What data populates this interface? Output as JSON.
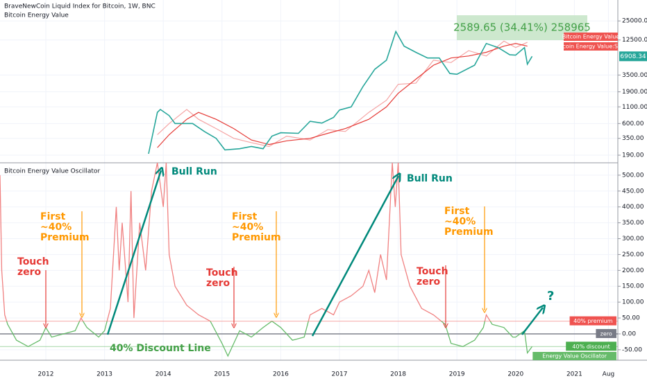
{
  "chart_data": [
    {
      "type": "line",
      "title": "BraveNewCoin Liquid Index for Bitcoin, 1W, BNC",
      "subtitle": "Bitcoin Energy Value",
      "log_scale": true,
      "ylim": [
        144,
        53500
      ],
      "yticks": [
        {
          "value": 190,
          "label": "190.00"
        },
        {
          "value": 350,
          "label": "350.00"
        },
        {
          "value": 600,
          "label": "600.00"
        },
        {
          "value": 1100,
          "label": "1100.00"
        },
        {
          "value": 1900,
          "label": "1900.00"
        },
        {
          "value": 3500,
          "label": "3500.00"
        },
        {
          "value": 12500,
          "label": "12500.00"
        },
        {
          "value": 25000,
          "label": "25000.00"
        }
      ],
      "grid": true,
      "series": [
        {
          "name": "Bitcoin Energy Value",
          "color": "#f5a3a3",
          "x": [
            2013.9,
            2014.1,
            2014.4,
            2014.6,
            2014.9,
            2015.2,
            2015.5,
            2015.8,
            2016.1,
            2016.5,
            2016.8,
            2017.1,
            2017.5,
            2017.8,
            2018.0,
            2018.3,
            2018.6,
            2018.9,
            2019.2,
            2019.5,
            2019.8,
            2020.0,
            2020.2
          ],
          "values": [
            400,
            600,
            1000,
            700,
            500,
            350,
            300,
            260,
            380,
            330,
            480,
            450,
            900,
            1400,
            2500,
            2600,
            6000,
            5500,
            8500,
            7000,
            12000,
            9500,
            11500
          ]
        },
        {
          "name": "Bitcoin Energy Value:SMA",
          "color": "#e53935",
          "x": [
            2013.9,
            2014.1,
            2014.4,
            2014.6,
            2014.9,
            2015.2,
            2015.5,
            2015.8,
            2016.1,
            2016.5,
            2016.8,
            2017.1,
            2017.5,
            2017.8,
            2018.0,
            2018.3,
            2018.6,
            2018.9,
            2019.2,
            2019.5,
            2019.8,
            2020.0,
            2020.2
          ],
          "values": [
            250,
            400,
            700,
            900,
            700,
            500,
            330,
            280,
            320,
            350,
            420,
            500,
            700,
            1100,
            1800,
            3000,
            5000,
            6500,
            7000,
            8000,
            10000,
            11000,
            10000
          ]
        },
        {
          "name": "BraveNewCoin Liquid Index for Bitcoin",
          "color": "#26a69a",
          "x": [
            2013.75,
            2013.9,
            2013.95,
            2014.1,
            2014.2,
            2014.4,
            2014.5,
            2014.7,
            2014.9,
            2015.05,
            2015.3,
            2015.5,
            2015.7,
            2015.85,
            2016.0,
            2016.3,
            2016.5,
            2016.7,
            2016.9,
            2017.0,
            2017.2,
            2017.4,
            2017.6,
            2017.8,
            2017.96,
            2018.1,
            2018.3,
            2018.5,
            2018.7,
            2018.88,
            2019.0,
            2019.3,
            2019.5,
            2019.7,
            2019.9,
            2020.0,
            2020.15,
            2020.2,
            2020.28
          ],
          "values": [
            200,
            900,
            1000,
            800,
            600,
            600,
            600,
            450,
            350,
            230,
            240,
            260,
            240,
            380,
            430,
            420,
            650,
            610,
            750,
            980,
            1100,
            2300,
            4300,
            6000,
            17000,
            10000,
            8000,
            6500,
            6500,
            3700,
            3600,
            5000,
            11000,
            9500,
            7300,
            7200,
            9500,
            5200,
            6908.34
          ]
        }
      ],
      "measure_label": "2589.65 (34.41%) 258965"
    },
    {
      "type": "line",
      "title": "Bitcoin Energy Value Oscillator",
      "xlim": [
        2011.22,
        2021.74
      ],
      "ylim": [
        -83,
        539
      ],
      "xticks": [
        2012,
        2013,
        2014,
        2015,
        2016,
        2017,
        2018,
        2019,
        2020,
        2021,
        {
          "value": 2021.58,
          "label": "Aug"
        }
      ],
      "yticks": [
        {
          "value": -50,
          "label": "-50.00"
        },
        {
          "value": 0,
          "label": "0.00"
        },
        {
          "value": 50,
          "label": "50.00"
        },
        {
          "value": 100,
          "label": "100.00"
        },
        {
          "value": 150,
          "label": "150.00"
        },
        {
          "value": 200,
          "label": "200.00"
        },
        {
          "value": 250,
          "label": "250.00"
        },
        {
          "value": 300,
          "label": "300.00"
        },
        {
          "value": 350,
          "label": "350.00"
        },
        {
          "value": 400,
          "label": "400.00"
        },
        {
          "value": 450,
          "label": "450.00"
        },
        {
          "value": 500,
          "label": "500.00"
        }
      ],
      "grid": true,
      "hlines": [
        {
          "value": 40,
          "label": "40% premium",
          "color": "#ef5350"
        },
        {
          "value": 0,
          "label": "zero",
          "color": "#787b86"
        },
        {
          "value": -40,
          "label": "40% discount",
          "color": "#4caf50"
        }
      ],
      "x": [
        2011.22,
        2011.25,
        2011.3,
        2011.35,
        2011.5,
        2011.7,
        2011.9,
        2012.0,
        2012.1,
        2012.3,
        2012.5,
        2012.6,
        2012.7,
        2012.9,
        2013.0,
        2013.1,
        2013.2,
        2013.25,
        2013.3,
        2013.4,
        2013.45,
        2013.5,
        2013.6,
        2013.7,
        2013.8,
        2013.9,
        2014.0,
        2014.05,
        2014.1,
        2014.2,
        2014.3,
        2014.4,
        2014.6,
        2014.8,
        2015.0,
        2015.1,
        2015.3,
        2015.5,
        2015.7,
        2015.85,
        2016.0,
        2016.2,
        2016.4,
        2016.5,
        2016.7,
        2016.9,
        2017.0,
        2017.2,
        2017.4,
        2017.5,
        2017.6,
        2017.7,
        2017.8,
        2017.9,
        2017.95,
        2018.0,
        2018.05,
        2018.2,
        2018.4,
        2018.6,
        2018.8,
        2018.9,
        2019.1,
        2019.3,
        2019.45,
        2019.5,
        2019.6,
        2019.8,
        2019.95,
        2020.0,
        2020.15,
        2020.2,
        2020.28
      ],
      "series": [
        {
          "name": "Energy Value Oscillator",
          "color": "#f08080",
          "color_below": "#66bb6a",
          "values": [
            500,
            200,
            60,
            30,
            -20,
            -40,
            -20,
            20,
            -10,
            0,
            10,
            50,
            20,
            -10,
            10,
            80,
            400,
            200,
            350,
            100,
            450,
            50,
            350,
            200,
            450,
            539,
            400,
            539,
            250,
            150,
            120,
            90,
            60,
            40,
            -30,
            -70,
            10,
            -10,
            20,
            40,
            20,
            -20,
            -10,
            60,
            80,
            60,
            100,
            120,
            150,
            200,
            130,
            250,
            170,
            539,
            400,
            539,
            250,
            150,
            80,
            60,
            30,
            -30,
            -40,
            -20,
            20,
            60,
            30,
            20,
            -10,
            -10,
            10,
            -60,
            -40
          ]
        }
      ],
      "annotations": [
        [
          "Touch",
          "zero"
        ],
        [
          "Touch",
          "zero"
        ],
        [
          "Touch",
          "zero"
        ],
        [
          "First",
          "~40%",
          "Premium"
        ],
        [
          "First",
          "~40%",
          "Premium"
        ],
        [
          "First",
          "~40%",
          "Premium"
        ],
        [
          "Bull Run"
        ],
        [
          "Bull Run"
        ],
        [
          "40% Discount Line"
        ],
        [
          "?"
        ]
      ]
    }
  ]
}
